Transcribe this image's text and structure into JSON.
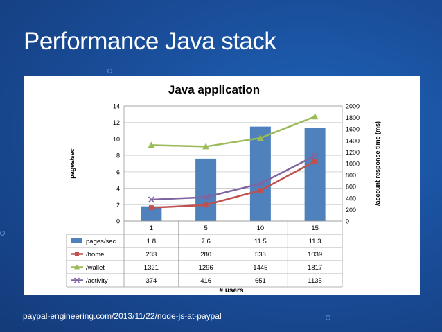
{
  "slide": {
    "title": "Performance Java stack",
    "footer_link": "paypal-engineering.com/2013/11/22/node-js-at-paypal"
  },
  "chart_data": {
    "type": "bar",
    "title": "Java application",
    "xlabel": "# users",
    "ylabel_left": "pages/sec",
    "ylabel_right": "/account response time (ms)",
    "categories": [
      "1",
      "5",
      "10",
      "15"
    ],
    "ylim_left": [
      0,
      14
    ],
    "yticks_left": [
      "0",
      "2",
      "4",
      "6",
      "8",
      "10",
      "12",
      "14"
    ],
    "ylim_right": [
      0,
      2000
    ],
    "yticks_right": [
      "0",
      "200",
      "400",
      "600",
      "800",
      "1000",
      "1200",
      "1400",
      "1600",
      "1800",
      "2000"
    ],
    "grid": true,
    "legend": "data-table",
    "series": [
      {
        "name": "pages/sec",
        "kind": "bar",
        "axis": "left",
        "color": "#4f81bd",
        "values": [
          1.8,
          7.6,
          11.5,
          11.3
        ],
        "labels": [
          "1.8",
          "7.6",
          "11.5",
          "11.3"
        ]
      },
      {
        "name": "/home",
        "kind": "line",
        "axis": "right",
        "marker": "square",
        "color": "#c0504d",
        "values": [
          233,
          280,
          533,
          1039
        ],
        "labels": [
          "233",
          "280",
          "533",
          "1039"
        ]
      },
      {
        "name": "/wallet",
        "kind": "line",
        "axis": "right",
        "marker": "triangle",
        "color": "#9bbb59",
        "values": [
          1321,
          1296,
          1445,
          1817
        ],
        "labels": [
          "1321",
          "1296",
          "1445",
          "1817"
        ]
      },
      {
        "name": "/activity",
        "kind": "line",
        "axis": "right",
        "marker": "x",
        "color": "#8064a2",
        "values": [
          374,
          416,
          651,
          1135
        ],
        "labels": [
          "374",
          "416",
          "651",
          "1135"
        ]
      }
    ]
  }
}
